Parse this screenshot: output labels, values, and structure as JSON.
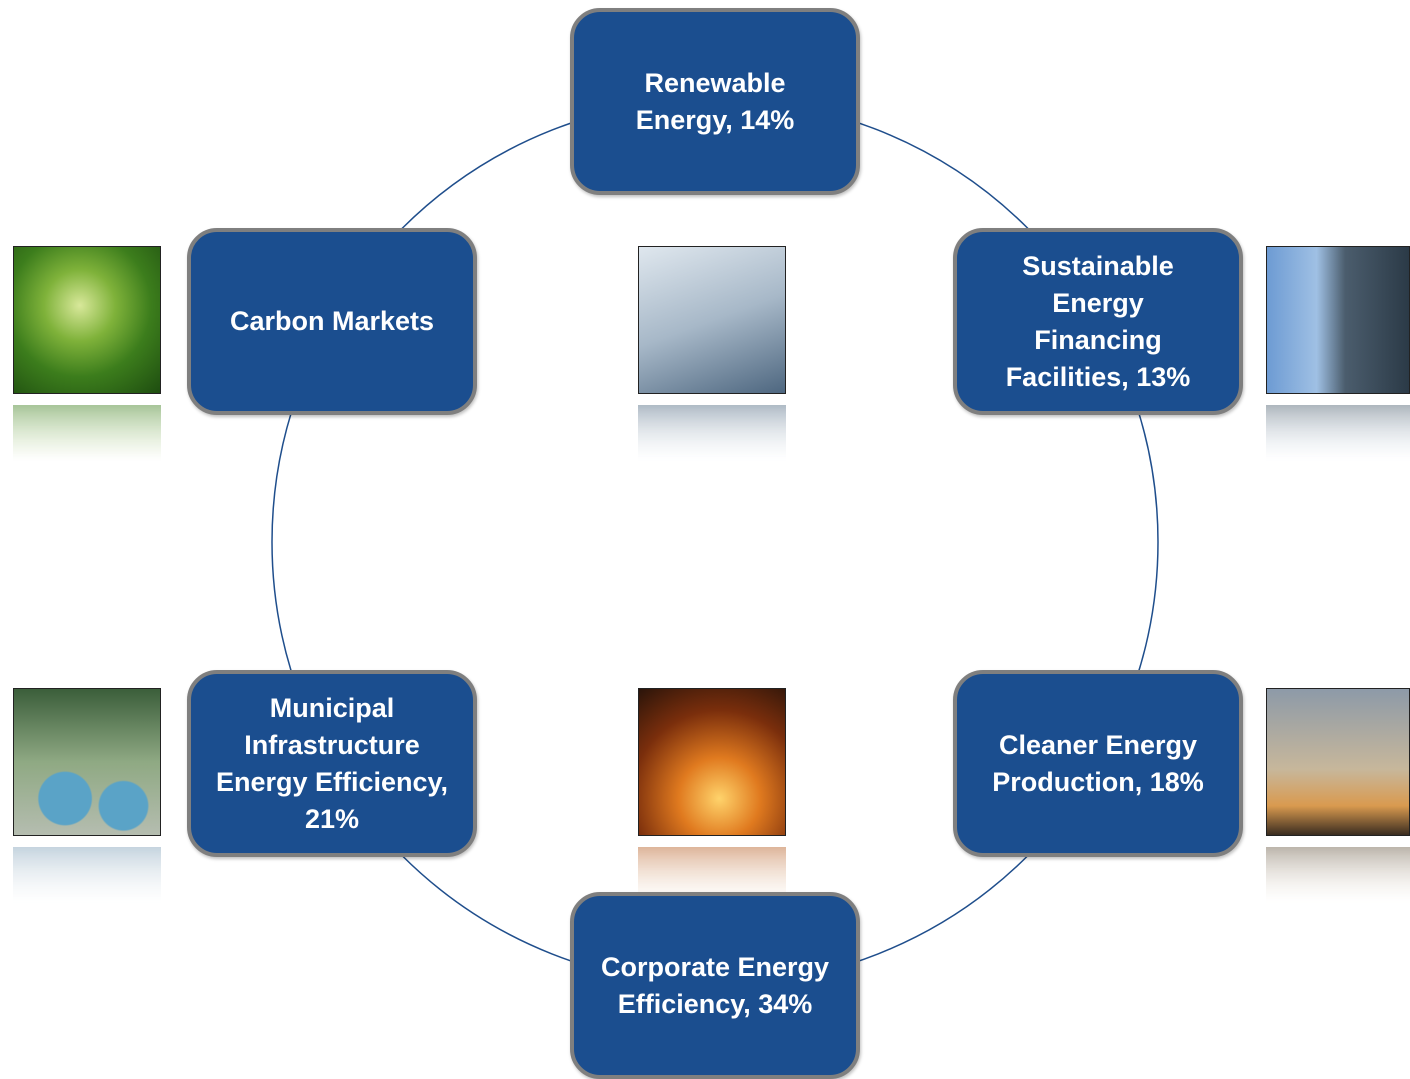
{
  "nodes": [
    {
      "label": "Renewable Energy, 14%"
    },
    {
      "label": "Sustainable Energy Financing Facilities, 13%"
    },
    {
      "label": "Cleaner Energy Production, 18%"
    },
    {
      "label": "Corporate Energy Efficiency, 34%"
    },
    {
      "label": "Municipal Infrastructure Energy Efficiency, 21%"
    },
    {
      "label": "Carbon Markets"
    }
  ]
}
